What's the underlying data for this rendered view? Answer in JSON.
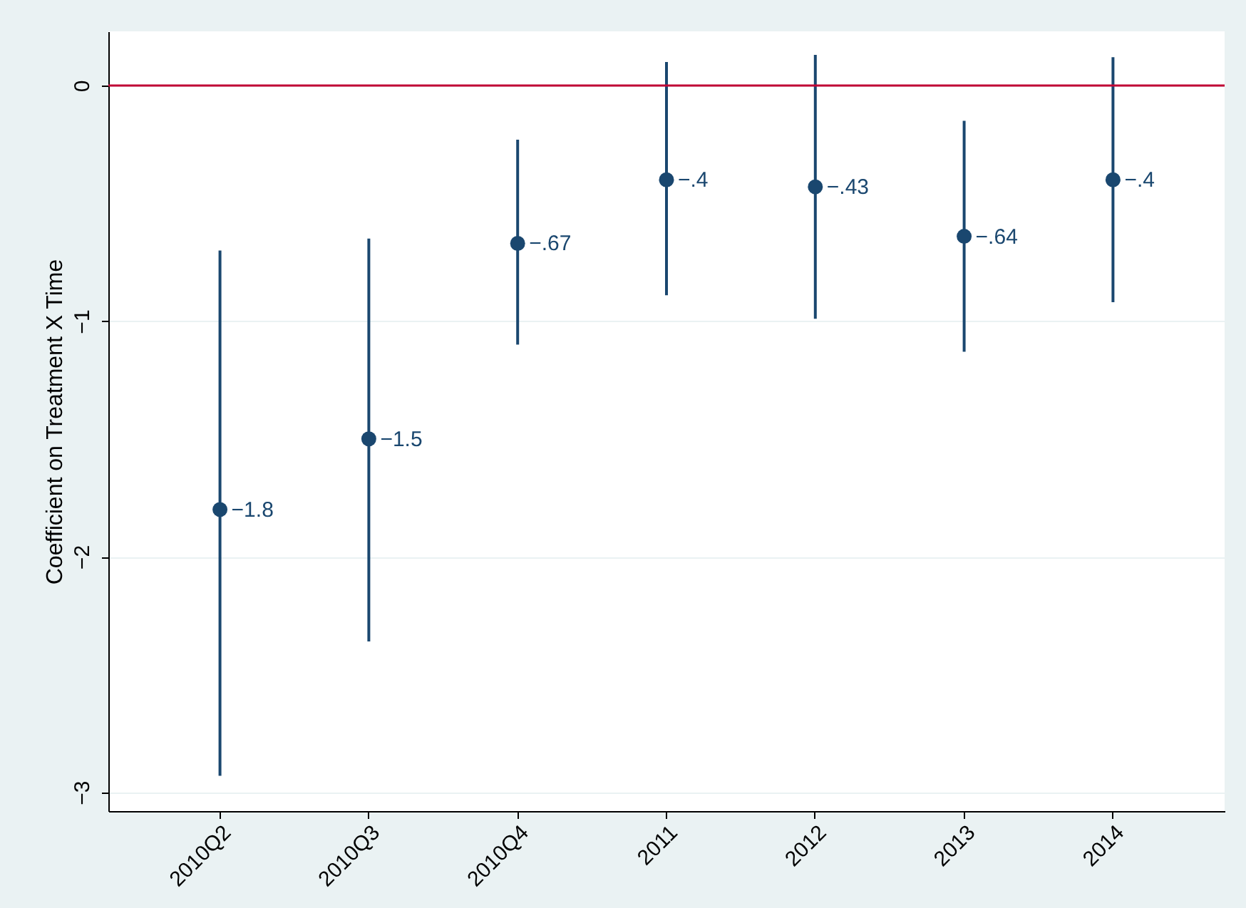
{
  "chart_data": {
    "type": "scatter",
    "ylabel": "Coefficient on Treatment X Time",
    "categories": [
      "2010Q2",
      "2010Q3",
      "2010Q4",
      "2011",
      "2012",
      "2013",
      "2014"
    ],
    "series": [
      {
        "color": "#1a476f",
        "values": [
          -1.8,
          -1.5,
          -0.67,
          -0.4,
          -0.43,
          -0.64,
          -0.4
        ],
        "value_labels": [
          "−1.8",
          "−1.5",
          "−.67",
          "−.4",
          "−.43",
          "−.64",
          "−.4"
        ],
        "errors": [
          [
            -2.93,
            -0.7
          ],
          [
            -2.36,
            -0.65
          ],
          [
            -1.1,
            -0.23
          ],
          [
            -0.89,
            0.1
          ],
          [
            -0.99,
            0.13
          ],
          [
            -1.13,
            -0.15
          ],
          [
            -0.92,
            0.12
          ]
        ]
      }
    ],
    "ylim": [
      -3.08,
      0.23
    ],
    "yticks": [
      {
        "value": -3,
        "label": "−3"
      },
      {
        "value": -2,
        "label": "−2"
      },
      {
        "value": -1,
        "label": "−1"
      },
      0
    ],
    "ref_lines": [
      {
        "axis": "y",
        "value": 0,
        "color": "#c10534"
      }
    ],
    "grid": "y",
    "marker": "circle"
  }
}
